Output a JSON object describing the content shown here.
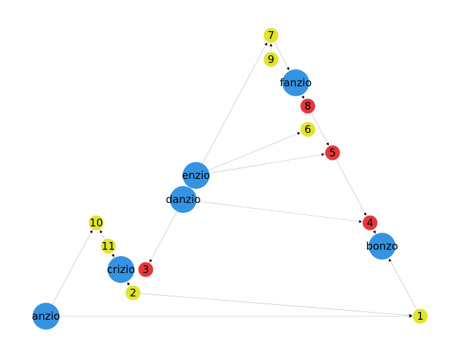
{
  "diagram": {
    "colors": {
      "entity": "#3593e2",
      "red": "#e5383e",
      "yellow": "#e1e42e",
      "edge": "#b8b8b8",
      "label": "#000000"
    },
    "nodes": [
      {
        "id": "anzio",
        "label": "anzio",
        "kind": "entity"
      },
      {
        "id": "bonzo",
        "label": "bonzo",
        "kind": "entity"
      },
      {
        "id": "crizio",
        "label": "crizio",
        "kind": "entity"
      },
      {
        "id": "danzio",
        "label": "danzio",
        "kind": "entity"
      },
      {
        "id": "enzio",
        "label": "enzio",
        "kind": "entity"
      },
      {
        "id": "fanzio",
        "label": "fanzio",
        "kind": "entity"
      },
      {
        "id": "n1",
        "label": "1",
        "kind": "yellow"
      },
      {
        "id": "n2",
        "label": "2",
        "kind": "yellow"
      },
      {
        "id": "n3",
        "label": "3",
        "kind": "red"
      },
      {
        "id": "n4",
        "label": "4",
        "kind": "red"
      },
      {
        "id": "n5",
        "label": "5",
        "kind": "red"
      },
      {
        "id": "n6",
        "label": "6",
        "kind": "yellow"
      },
      {
        "id": "n7",
        "label": "7",
        "kind": "yellow"
      },
      {
        "id": "n8",
        "label": "8",
        "kind": "red"
      },
      {
        "id": "n9",
        "label": "9",
        "kind": "yellow"
      },
      {
        "id": "n10",
        "label": "10",
        "kind": "yellow"
      },
      {
        "id": "n11",
        "label": "11",
        "kind": "yellow"
      }
    ],
    "edges": [
      {
        "from": "anzio",
        "to": "n10"
      },
      {
        "from": "anzio",
        "to": "n1"
      },
      {
        "from": "n11",
        "to": "n10"
      },
      {
        "from": "n11",
        "to": "crizio"
      },
      {
        "from": "n2",
        "to": "crizio"
      },
      {
        "from": "n2",
        "to": "n1"
      },
      {
        "from": "n1",
        "to": "bonzo"
      },
      {
        "from": "n4",
        "to": "bonzo"
      },
      {
        "from": "danzio",
        "to": "n4"
      },
      {
        "from": "danzio",
        "to": "n3"
      },
      {
        "from": "n5",
        "to": "n4"
      },
      {
        "from": "enzio",
        "to": "n5"
      },
      {
        "from": "enzio",
        "to": "n6"
      },
      {
        "from": "enzio",
        "to": "n7"
      },
      {
        "from": "n8",
        "to": "n5"
      },
      {
        "from": "fanzio",
        "to": "n8"
      },
      {
        "from": "n7",
        "to": "fanzio"
      },
      {
        "from": "n9",
        "to": "n7"
      }
    ]
  }
}
